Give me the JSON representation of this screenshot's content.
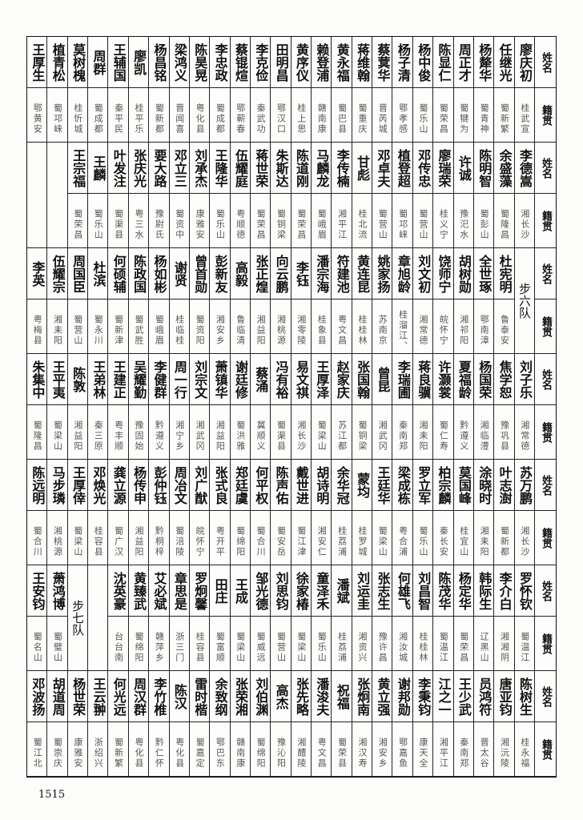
{
  "header": {
    "name_label": "姓名",
    "place_label": "籍贯"
  },
  "page_number": "1515",
  "bands": [
    {
      "cells": [
        {
          "name": "王厚生",
          "place": "鄂黄安"
        },
        {
          "name": "植青松",
          "place": "蜀邛崃"
        },
        {
          "name": "莫树槐",
          "place": "桂忻城"
        },
        {
          "name": "周群",
          "place": "蜀成都"
        },
        {
          "name": "王辅国",
          "place": "秦平民"
        },
        {
          "name": "廖凯",
          "place": "桂平乐"
        },
        {
          "name": "杨昌铭",
          "place": "蜀新都"
        },
        {
          "name": "梁鸿义",
          "place": "晋闻喜"
        },
        {
          "name": "陈昊晃",
          "place": "粤化县"
        },
        {
          "name": "李忠政",
          "place": "蜀成都"
        },
        {
          "name": "蔡锟煊",
          "place": "鄂蕲春"
        },
        {
          "name": "李克俭",
          "place": "秦武功"
        },
        {
          "name": "田明昌",
          "place": "鄂汉口"
        },
        {
          "name": "黄序仪",
          "place": "桂上思"
        },
        {
          "name": "赖登浦",
          "place": "赣南康"
        },
        {
          "name": "黄永福",
          "place": "蜀巴县"
        },
        {
          "name": "蒋维翰",
          "place": "蜀重庆"
        },
        {
          "name": "蔡蓂华",
          "place": "晋芮城"
        },
        {
          "name": "杨子清",
          "place": "鄂孝感"
        },
        {
          "name": "杨中俊",
          "place": "蜀乐山"
        },
        {
          "name": "陈显仁",
          "place": "蜀荣昌"
        },
        {
          "name": "周正才",
          "place": "蜀犍为"
        },
        {
          "name": "杨犛华",
          "place": "蜀青神"
        },
        {
          "name": "任继光",
          "place": "蜀新繁"
        },
        {
          "name": "廖庆初",
          "place": "桂武宣"
        }
      ]
    },
    {
      "cells": [
        {
          "blank": true
        },
        {
          "blank": true
        },
        {
          "name": "王宗福",
          "place": "蜀荣昌"
        },
        {
          "name": "王麟",
          "place": "蜀乐山"
        },
        {
          "name": "叶发注",
          "place": "蜀渠县"
        },
        {
          "name": "张庆光",
          "place": "粤三水"
        },
        {
          "name": "要大路",
          "place": "豫尉氏"
        },
        {
          "name": "邓立三",
          "place": "蜀资中"
        },
        {
          "name": "刘承杰",
          "place": "康雅安"
        },
        {
          "name": "王隆华",
          "place": "蜀乐山"
        },
        {
          "name": "伍耀庭",
          "place": "粤顺德"
        },
        {
          "name": "蒋世荣",
          "place": "蜀荣昌"
        },
        {
          "name": "朱斯达",
          "place": "蜀铜梁"
        },
        {
          "name": "陈道刚",
          "place": "蜀荣昌"
        },
        {
          "name": "马麟龙",
          "place": "蜀峨眉"
        },
        {
          "name": "李传楠",
          "place": "湘平江"
        },
        {
          "name": "甘彪",
          "place": "桂北流"
        },
        {
          "name": "邓卓夫",
          "place": "蜀营山"
        },
        {
          "name": "植登超",
          "place": "蜀邛崃"
        },
        {
          "name": "邓传忠",
          "place": "蜀营山"
        },
        {
          "name": "廖瑞荣",
          "place": "桂义宁"
        },
        {
          "name": "许诚",
          "place": "豫汜水"
        },
        {
          "name": "陈明智",
          "place": "蜀彭山"
        },
        {
          "name": "余盛藻",
          "place": "蜀隆昌"
        },
        {
          "name": "李德嵩",
          "place": "湘长沙"
        }
      ]
    },
    {
      "cells": [
        {
          "name": "李英",
          "place": "粤梅县"
        },
        {
          "name": "伍耀宗",
          "place": "湘耒阳"
        },
        {
          "name": "周国臣",
          "place": "蜀营山"
        },
        {
          "name": "杜滨",
          "place": "蜀永川"
        },
        {
          "name": "何硕辅",
          "place": "蜀新津"
        },
        {
          "name": "陈政国",
          "place": "蜀武胜"
        },
        {
          "name": "杨如彬",
          "place": "蜀峨眉"
        },
        {
          "name": "谢贤",
          "place": "桂临桂"
        },
        {
          "name": "曾首勋",
          "place": "蜀资阳"
        },
        {
          "name": "彭新友",
          "place": "湘安乡"
        },
        {
          "name": "高毅",
          "place": "鲁临清"
        },
        {
          "name": "张正煌",
          "place": "湘益阳"
        },
        {
          "name": "向云鹏",
          "place": "湘桃源"
        },
        {
          "name": "李钰",
          "place": "湘零陵"
        },
        {
          "name": "潘宗海",
          "place": "桂象县"
        },
        {
          "name": "符建池",
          "place": "粤文昌"
        },
        {
          "name": "黄连昆",
          "place": "桂桂林"
        },
        {
          "name": "姚家扬",
          "place": "苏南京"
        },
        {
          "name": "章旭龄",
          "place": "桂溜江、"
        },
        {
          "name": "刘文初",
          "place": "湘常德"
        },
        {
          "name": "饶师宁",
          "place": "皖怀宁"
        },
        {
          "name": "胡树勋",
          "place": "湘祁阳"
        },
        {
          "name": "全世琢",
          "place": "鄂南漳"
        },
        {
          "name": "杜宪明",
          "place": "鲁泰安"
        },
        {
          "team": "步六队"
        }
      ]
    },
    {
      "cells": [
        {
          "name": "朱集中",
          "place": "蜀隆昌"
        },
        {
          "name": "王平夷",
          "place": "蜀梁山"
        },
        {
          "name": "陈敦",
          "place": "湘益阳"
        },
        {
          "name": "王弟林",
          "place": "秦三原"
        },
        {
          "name": "王建正",
          "place": "粤丰顺"
        },
        {
          "name": "吴耀勤",
          "place": "豫固始"
        },
        {
          "name": "李健群",
          "place": "黔遵义"
        },
        {
          "name": "周一行",
          "place": "湘宁乡"
        },
        {
          "name": "刘宗文",
          "place": "湘武冈"
        },
        {
          "name": "萧镇华",
          "place": "湘益阳"
        },
        {
          "name": "谢廷修",
          "place": "蜀洪雅"
        },
        {
          "name": "蔡涌",
          "place": "冀顺义"
        },
        {
          "name": "冯有裕",
          "place": "蜀渠县"
        },
        {
          "name": "易文祺",
          "place": "湘长沙"
        },
        {
          "name": "王厚泽",
          "place": "蜀梁山"
        },
        {
          "name": "赵家庆",
          "place": "苏江都"
        },
        {
          "name": "张国翰",
          "place": "蜀铜梁"
        },
        {
          "name": "曾昆",
          "place": "湘武冈"
        },
        {
          "name": "李瑞圃",
          "place": "秦南郑"
        },
        {
          "name": "蒋良骥",
          "place": "湘耒阳"
        },
        {
          "name": "许灏裳",
          "place": "蜀仁寿"
        },
        {
          "name": "夏福龄",
          "place": "黔遵义"
        },
        {
          "name": "杨国荣",
          "place": "湘临澧"
        },
        {
          "name": "焦学恕",
          "place": "豫巩县"
        },
        {
          "name": "刘子乐",
          "place": "湘常德"
        }
      ]
    },
    {
      "cells": [
        {
          "name": "陈远明",
          "place": "蜀合川"
        },
        {
          "name": "马步璘",
          "place": "湘桃源"
        },
        {
          "name": "王厚倖",
          "place": "蜀梁山"
        },
        {
          "name": "邓焕光",
          "place": "桂容县"
        },
        {
          "name": "龚立源",
          "place": "蜀广汉"
        },
        {
          "name": "杨传申",
          "place": "湘益阳"
        },
        {
          "name": "彭仲钰",
          "place": "黔桐梓"
        },
        {
          "name": "周冶文",
          "place": "蜀涪陵"
        },
        {
          "name": "刘广猷",
          "place": "皖怀宁"
        },
        {
          "name": "张式良",
          "place": "粤开平"
        },
        {
          "name": "郑廷虞",
          "place": "蜀绵阳"
        },
        {
          "name": "何平权",
          "place": "蜀合川"
        },
        {
          "name": "陈声佑",
          "place": "蜀安岳"
        },
        {
          "name": "戴世进",
          "place": "蜀江津"
        },
        {
          "name": "胡诗明",
          "place": "湘安仁"
        },
        {
          "name": "余华冠",
          "place": "桂荔浦"
        },
        {
          "name": "蒙均",
          "place": "桂罗城"
        },
        {
          "name": "王廷华",
          "place": "蜀梁山"
        },
        {
          "name": "梁成栋",
          "place": "粤合浦"
        },
        {
          "name": "罗立军",
          "place": "蜀乐山"
        },
        {
          "name": "柏宗麟",
          "place": "秦长安"
        },
        {
          "name": "莫国峰",
          "place": "桂宜山"
        },
        {
          "name": "涂晓时",
          "place": "湘耒阳"
        },
        {
          "name": "叶志澍",
          "place": "蜀新都"
        },
        {
          "name": "苏万鹏",
          "place": "湘长沙"
        }
      ]
    },
    {
      "cells": [
        {
          "name": "王安钧",
          "place": "蜀名山"
        },
        {
          "name": "萧鸿博",
          "place": "蜀璧山"
        },
        {
          "team": "步七队"
        },
        {
          "blank": true
        },
        {
          "name": "沈英豪",
          "place": "台台南"
        },
        {
          "name": "黄臻武",
          "place": "蜀绵阳"
        },
        {
          "name": "艾必斌",
          "place": "赣萍乡"
        },
        {
          "name": "章思是",
          "place": "浙三门"
        },
        {
          "name": "罗炯馨",
          "place": "桂容县"
        },
        {
          "name": "田庄",
          "place": "蜀富顺"
        },
        {
          "name": "王成",
          "place": "蜀梁山"
        },
        {
          "name": "邹光德",
          "place": "蜀威远"
        },
        {
          "name": "刘思钧",
          "place": "蜀营山"
        },
        {
          "name": "徐家椿",
          "place": "蜀梁山"
        },
        {
          "name": "童泽禾",
          "place": "蜀乐山"
        },
        {
          "name": "潘斌",
          "place": "桂荔浦"
        },
        {
          "name": "刘运圭",
          "place": "湘资兴"
        },
        {
          "name": "张志生",
          "place": "豫许昌"
        },
        {
          "name": "何雄飞",
          "place": "湘汝城"
        },
        {
          "name": "刘昌智",
          "place": "桂桂林"
        },
        {
          "name": "陈茂华",
          "place": "蜀温江"
        },
        {
          "name": "杨定华",
          "place": "蜀荣昌"
        },
        {
          "name": "韩际生",
          "place": "辽黑山"
        },
        {
          "name": "李介白",
          "place": "湘湘阴"
        },
        {
          "name": "罗怀钦",
          "place": "蜀温江"
        }
      ]
    },
    {
      "cells": [
        {
          "name": "邓波扬",
          "place": "蜀江北"
        },
        {
          "name": "胡道周",
          "place": "蜀崇庆"
        },
        {
          "name": "杨世荣",
          "place": "康雅安"
        },
        {
          "name": "王云翀",
          "place": "浙绍兴"
        },
        {
          "name": "何光远",
          "place": "蜀新繁"
        },
        {
          "name": "周汉群",
          "place": "粤化县"
        },
        {
          "name": "李竹椎",
          "place": "黔仁怀"
        },
        {
          "name": "陈汉",
          "place": "粤化县"
        },
        {
          "name": "雷时楷",
          "place": "蜀嘉定"
        },
        {
          "name": "余致纲",
          "place": "鄂巴东"
        },
        {
          "name": "张荣湘",
          "place": "赣南康"
        },
        {
          "name": "刘伯渊",
          "place": "蜀绵阳"
        },
        {
          "name": "高杰",
          "place": "豫沁阳"
        },
        {
          "name": "张先略",
          "place": "湘醴陵"
        },
        {
          "name": "潘浚夫",
          "place": "粤文昌"
        },
        {
          "name": "祝福",
          "place": "蜀荣县"
        },
        {
          "name": "张炯南",
          "place": "湘汉寿"
        },
        {
          "name": "黄立强",
          "place": "湘安乡"
        },
        {
          "name": "谢邦勋",
          "place": "鄂嘉鱼"
        },
        {
          "name": "李秉钧",
          "place": "康天全"
        },
        {
          "name": "江之一",
          "place": "湘平江"
        },
        {
          "name": "王少武",
          "place": "秦南郑"
        },
        {
          "name": "员鸿符",
          "place": "晋太谷"
        },
        {
          "name": "唐亚钧",
          "place": "湘沅陵"
        },
        {
          "name": "陈树生",
          "place": "桂永福"
        }
      ]
    }
  ]
}
